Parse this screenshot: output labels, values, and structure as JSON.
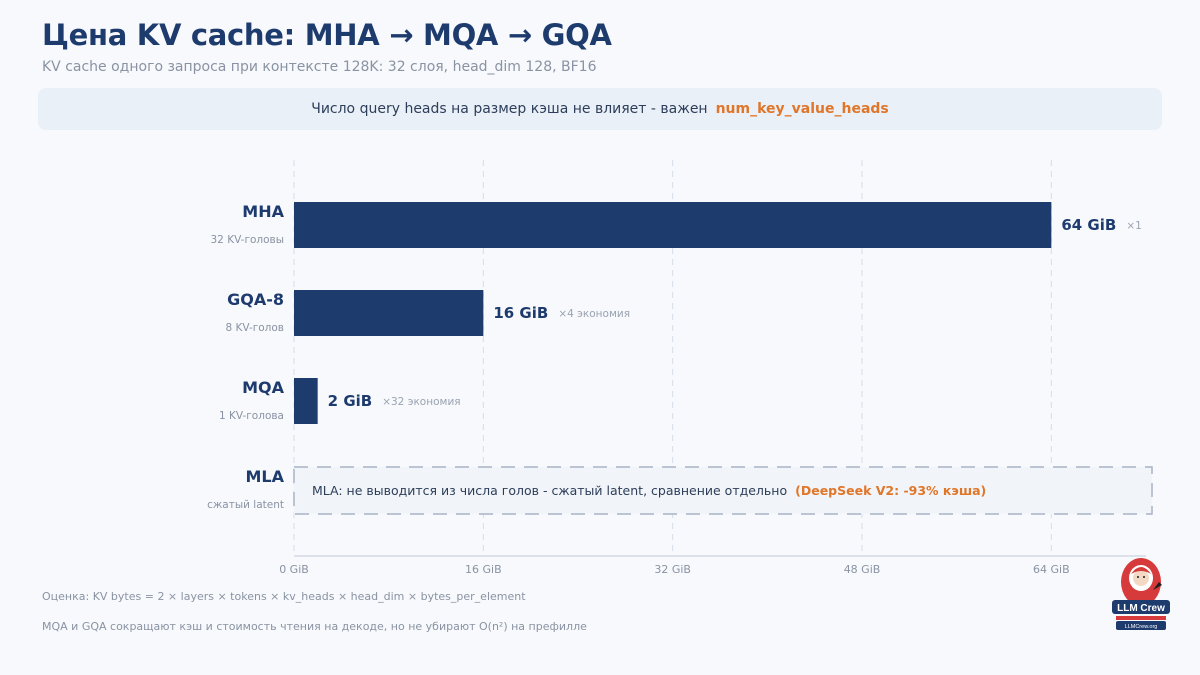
{
  "header": {
    "title": "Цена KV cache: MHA → MQA → GQA",
    "subtitle": "KV cache одного запроса при контексте 128K: 32 слоя, head_dim 128, BF16"
  },
  "banner": {
    "text": "Число query heads на размер кэша не влияет - важен",
    "highlight": "num_key_value_heads"
  },
  "chart_data": {
    "type": "bar",
    "orientation": "horizontal",
    "unit": "GiB",
    "xlim": [
      0,
      72
    ],
    "x_ticks": [
      "0 GiB",
      "16 GiB",
      "32 GiB",
      "48 GiB",
      "64 GiB"
    ],
    "x_tick_values": [
      0,
      16,
      32,
      48,
      64
    ],
    "grid": true,
    "categories": [
      {
        "name": "MHA",
        "sublabel": "32 KV-головы",
        "value": 64,
        "value_label": "64 GiB",
        "note": "×1"
      },
      {
        "name": "GQA-8",
        "sublabel": "8 KV-голов",
        "value": 16,
        "value_label": "16 GiB",
        "note": "×4 экономия"
      },
      {
        "name": "MQA",
        "sublabel": "1 KV-голова",
        "value": 2,
        "value_label": "2 GiB",
        "note": "×32 экономия"
      },
      {
        "name": "MLA",
        "sublabel": "сжатый latent",
        "value": null,
        "note_text": "MLA: не выводится из числа голов - сжатый latent, сравнение отдельно",
        "note_highlight": "(DeepSeek V2: -93% кэша)"
      }
    ],
    "bar_color": "#1e3b6e",
    "highlight_color": "#e0762a"
  },
  "footer": {
    "formula": "Оценка: KV bytes = 2 × layers × tokens × kv_heads × head_dim × bytes_per_element",
    "note": "MQA и GQA сокращают кэш и стоимость чтения на декоде, но не убирают O(n²) на префилле"
  },
  "logo": {
    "text": "LLM Crew",
    "url": "LLMCrew.org"
  }
}
